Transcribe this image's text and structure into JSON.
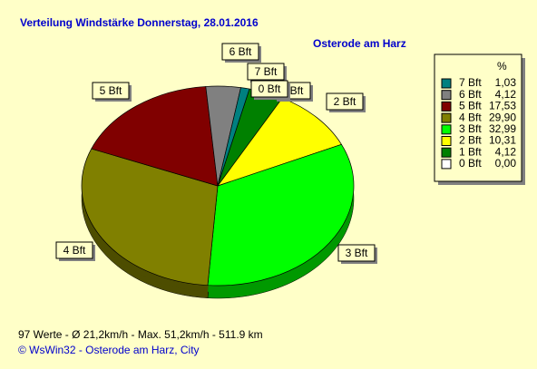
{
  "chart_data": {
    "type": "pie",
    "title": "Verteilung Windstärke  Donnerstag, 28.01.2016",
    "subtitle": "Osterode am Harz",
    "legend_header": "%",
    "categories": [
      "7 Bft",
      "6 Bft",
      "5 Bft",
      "4 Bft",
      "3 Bft",
      "2 Bft",
      "1 Bft",
      "0 Bft"
    ],
    "values": [
      1.03,
      4.12,
      17.53,
      29.9,
      32.99,
      10.31,
      4.12,
      0.0
    ],
    "value_labels": [
      "1,03",
      "4,12",
      "17,53",
      "29,90",
      "32,99",
      "10,31",
      "4,12",
      "0,00"
    ],
    "colors": [
      "#008080",
      "#808080",
      "#800000",
      "#808000",
      "#00ff00",
      "#ffff00",
      "#008000",
      "#ffffff"
    ],
    "legend": "right",
    "footer": "97 Werte   -   Ø 21,2km/h  -  Max. 51,2km/h  -   511.9 km",
    "credit": "© WsWin32  -  Osterode am Harz, City"
  }
}
